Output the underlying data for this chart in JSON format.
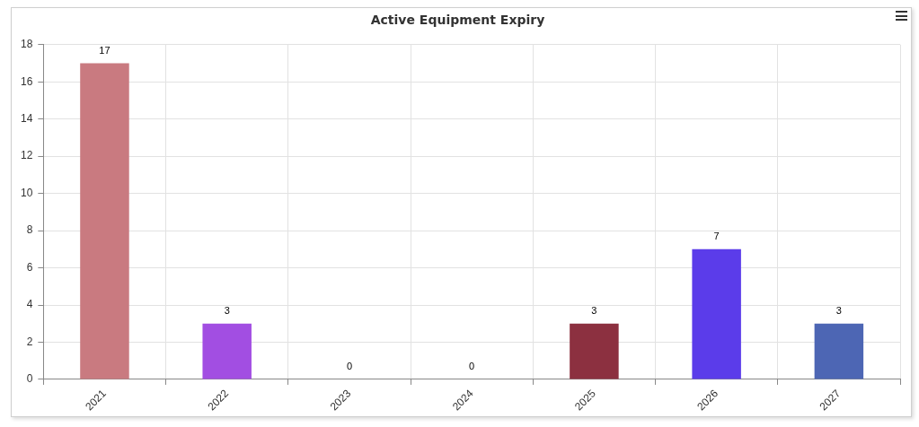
{
  "chart_data": {
    "type": "bar",
    "title": "Active Equipment Expiry",
    "categories": [
      "2021",
      "2022",
      "2023",
      "2024",
      "2025",
      "2026",
      "2027"
    ],
    "values": [
      17,
      3,
      0,
      0,
      3,
      7,
      3
    ],
    "colors": [
      "#c97a80",
      "#a24ee2",
      null,
      null,
      "#8c3040",
      "#5b3cea",
      "#4d66b4"
    ],
    "ylim": [
      0,
      18
    ],
    "yticks": [
      0,
      2,
      4,
      6,
      8,
      10,
      12,
      14,
      16,
      18
    ],
    "grid": true,
    "data_labels": true
  }
}
